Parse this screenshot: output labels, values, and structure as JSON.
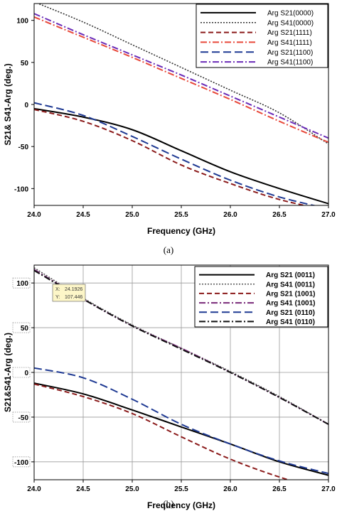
{
  "chart_data": [
    {
      "type": "line",
      "caption": "(a)",
      "xlabel": "Frequency (GHz)",
      "ylabel": "S21& S41-Arg (deg.)",
      "xlim": [
        24.0,
        27.0
      ],
      "ylim": [
        -120,
        120
      ],
      "xticks": [
        "24.0",
        "24.5",
        "25.0",
        "25.5",
        "26.0",
        "26.5",
        "27.0"
      ],
      "yticks": [
        "100",
        "50",
        "0",
        "-50",
        "-100"
      ],
      "grid": false,
      "legend_position": "top-right",
      "x": [
        24.0,
        24.5,
        25.0,
        25.5,
        26.0,
        26.5,
        27.0
      ],
      "series": [
        {
          "name": "Arg S21(0000)",
          "color": "#000000",
          "dash": "solid",
          "values": [
            -5,
            -15,
            -30,
            -55,
            -80,
            -100,
            -118
          ]
        },
        {
          "name": "Arg S41(0000)",
          "color": "#333333",
          "dash": "dot",
          "values": [
            122,
            98,
            71,
            44,
            17,
            -10,
            -47
          ]
        },
        {
          "name": "Arg S21(1111)",
          "color": "#8b1a1a",
          "dash": "dash",
          "values": [
            -6,
            -20,
            -43,
            -72,
            -94,
            -113,
            -126
          ]
        },
        {
          "name": "Arg S41(1111)",
          "color": "#e8483a",
          "dash": "dashdot",
          "values": [
            104,
            80,
            56,
            31,
            6,
            -20,
            -45
          ]
        },
        {
          "name": "Arg S21(1100)",
          "color": "#1f3a93",
          "dash": "longdash",
          "values": [
            2,
            -13,
            -38,
            -65,
            -90,
            -110,
            -124
          ]
        },
        {
          "name": "Arg S41(1100)",
          "color": "#6a2bb8",
          "dash": "dashdot",
          "values": [
            108,
            83,
            59,
            35,
            10,
            -15,
            -40
          ]
        }
      ]
    },
    {
      "type": "line",
      "caption": "(b)",
      "xlabel": "Frequency (GHz)",
      "ylabel": "S21&S41-Arg (deg.)",
      "xlim": [
        24.0,
        27.0
      ],
      "ylim": [
        -120,
        120
      ],
      "xticks": [
        "24.0",
        "24.5",
        "25.0",
        "25.5",
        "26.0",
        "26.5",
        "27.0"
      ],
      "yticks": [
        "100",
        "50",
        "0",
        "-50",
        "-100"
      ],
      "grid": true,
      "legend_position": "top-right",
      "tooltip": {
        "x_label": "X:",
        "x_value": "24.1926",
        "y_label": "Y:",
        "y_value": "107.446"
      },
      "x": [
        24.0,
        24.5,
        25.0,
        25.5,
        26.0,
        26.5,
        27.0
      ],
      "series": [
        {
          "name": "Arg S21 (0011)",
          "color": "#000000",
          "dash": "solid",
          "values": [
            -12,
            -24,
            -42,
            -61,
            -80,
            -100,
            -115
          ]
        },
        {
          "name": "Arg S41 (0011)",
          "color": "#555555",
          "dash": "dot",
          "values": [
            117,
            83,
            53,
            27,
            1,
            -27,
            -58
          ]
        },
        {
          "name": "Arg S21 (1001)",
          "color": "#8b1a1a",
          "dash": "dash",
          "values": [
            -13,
            -27,
            -46,
            -72,
            -97,
            -117,
            -133
          ]
        },
        {
          "name": "Arg S41 (1001)",
          "color": "#7a2a7a",
          "dash": "dashdot",
          "values": [
            115,
            82,
            52,
            27,
            0,
            -28,
            -58
          ]
        },
        {
          "name": "Arg S21 (0110)",
          "color": "#1f3a93",
          "dash": "longdash",
          "values": [
            5,
            -6,
            -30,
            -58,
            -80,
            -99,
            -113
          ]
        },
        {
          "name": "Arg S41 (0110)",
          "color": "#111111",
          "dash": "dashdot",
          "values": [
            114,
            82,
            52,
            26,
            0,
            -28,
            -58
          ]
        }
      ]
    }
  ]
}
